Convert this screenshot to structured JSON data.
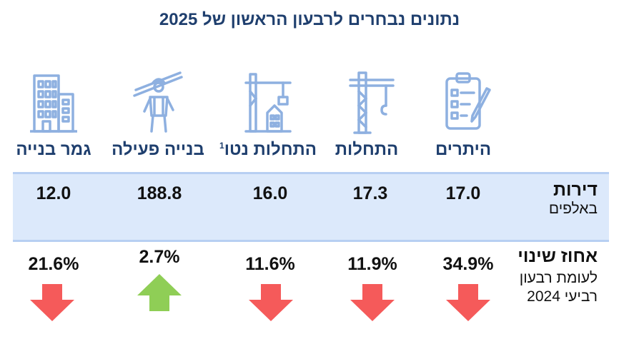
{
  "title": "נתונים נבחרים לרבעון הראשון של 2025",
  "row_headers": {
    "units_main": "דירות",
    "units_sub": "באלפים",
    "change_main": "אחוז שינוי",
    "change_sub1": "לעומת רבעון",
    "change_sub2": "רביעי 2024"
  },
  "columns": [
    {
      "label": "היתרים",
      "icon": "clipboard-checklist-icon",
      "value": "17.0",
      "change": "34.9%",
      "direction": "down"
    },
    {
      "label": "התחלות",
      "icon": "tower-crane-icon",
      "value": "17.3",
      "change": "11.9%",
      "direction": "down"
    },
    {
      "label": "התחלות נטו",
      "label_sup": "1",
      "icon": "building-under-construction-icon",
      "value": "16.0",
      "change": "11.6%",
      "direction": "down"
    },
    {
      "label": "בנייה פעילה",
      "icon": "construction-worker-icon",
      "value": "188.8",
      "change": "2.7%",
      "direction": "up"
    },
    {
      "label": "גמר בנייה",
      "icon": "completed-building-icon",
      "value": "12.0",
      "change": "21.6%",
      "direction": "down"
    }
  ],
  "colors": {
    "title": "#1f3f6e",
    "icon": "#8eb0e0",
    "band": "#dce9fb",
    "arrow_down": "#f55a5a",
    "arrow_up": "#8fce56"
  }
}
